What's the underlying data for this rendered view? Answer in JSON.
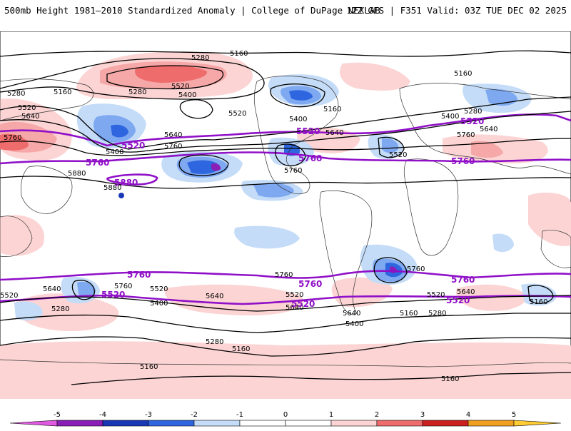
{
  "header": {
    "title_left": "500mb Height 1981–2010 Standardized Anomaly | College of DuPage NEXLAB",
    "title_right": "12Z GFS | F351 Valid: 03Z TUE DEC 02 2025"
  },
  "colors": {
    "neg5": "#e05ae0",
    "neg4": "#8a1fb8",
    "neg3": "#1838b8",
    "neg2": "#2e66e0",
    "neg1": "#7ea8f0",
    "neg05": "#c4dcf8",
    "zero": "#ffffff",
    "pos05": "#fcd4d4",
    "pos1": "#f6a8a8",
    "pos2": "#ee6c6c",
    "pos3": "#cc2020",
    "pos4": "#f0a020",
    "pos5": "#ffcc33",
    "contour": "#000000",
    "highlight": "#9010c8"
  },
  "contour_labels": {
    "c5160": "5160",
    "c5280": "5280",
    "c5400": "5400",
    "c5520": "5520",
    "c5640": "5640",
    "c5760": "5760",
    "c5880": "5880"
  },
  "colorbar": {
    "ticks": [
      "-5",
      "-4",
      "-3",
      "-2",
      "-1",
      "0",
      "1",
      "2",
      "3",
      "4",
      "5"
    ]
  }
}
